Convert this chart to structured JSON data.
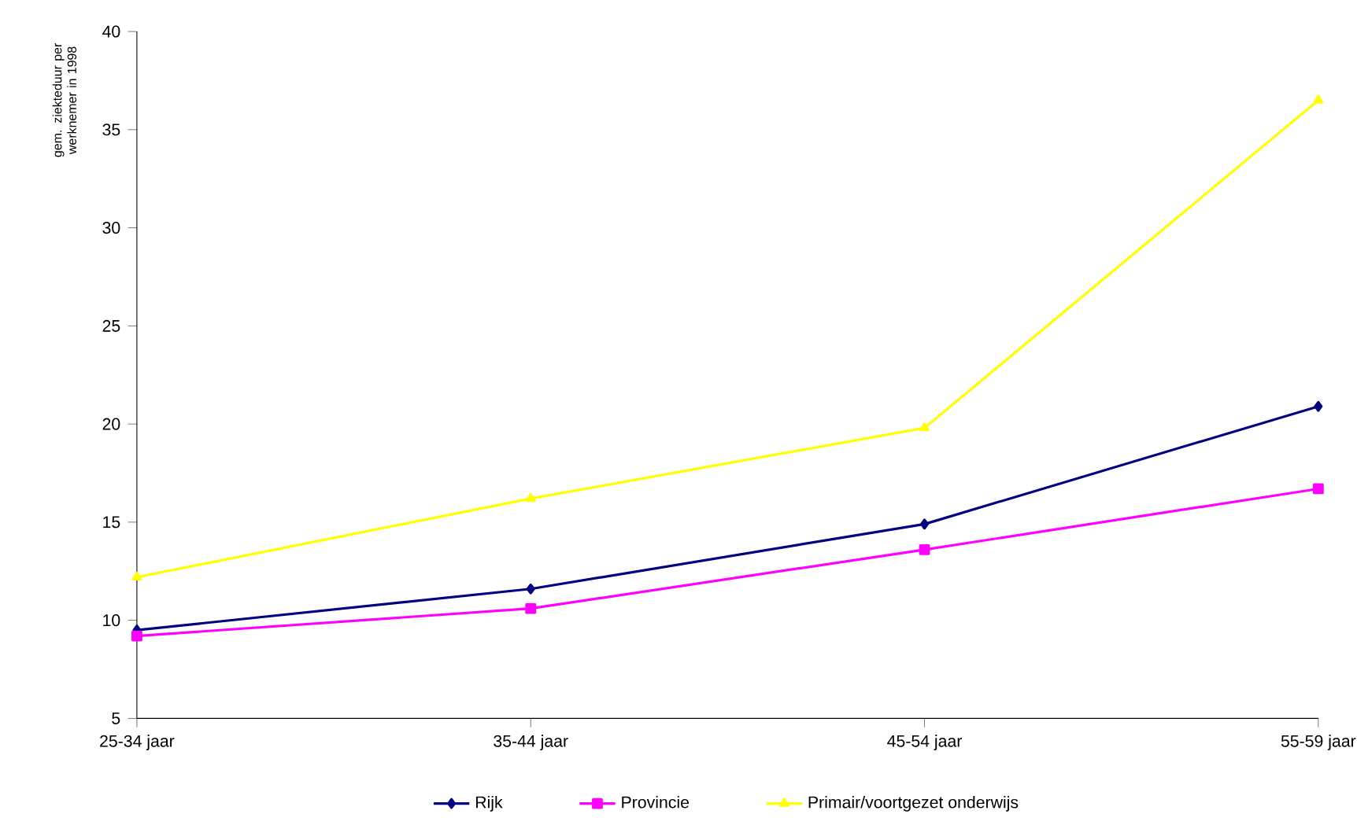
{
  "chart_data": {
    "type": "line",
    "categories": [
      "25-34 jaar",
      "35-44 jaar",
      "45-54 jaar",
      "55-59 jaar"
    ],
    "ylabel": "gem. ziekteduur per werknemer in 1998",
    "series": [
      {
        "name": "Rijk",
        "color": "#000080",
        "marker": "diamond",
        "values": [
          9.5,
          11.6,
          14.9,
          20.9
        ]
      },
      {
        "name": "Provincie",
        "color": "#ff00ff",
        "marker": "square",
        "values": [
          9.2,
          10.6,
          13.6,
          16.7
        ]
      },
      {
        "name": "Primair/voortgezet onderwijs",
        "color": "#ffff00",
        "marker": "triangle",
        "values": [
          12.2,
          16.2,
          19.8,
          36.5
        ]
      }
    ],
    "ylim": [
      5,
      40
    ],
    "yticks": [
      5,
      10,
      15,
      20,
      25,
      30,
      35,
      40
    ],
    "grid": false,
    "legend": "bottom"
  }
}
